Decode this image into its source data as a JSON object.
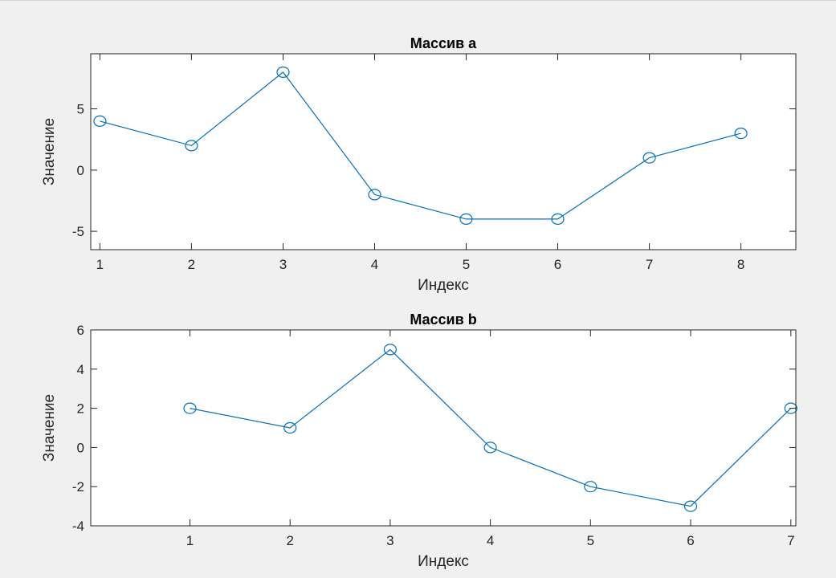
{
  "colors": {
    "background": "#f0f0f0",
    "axes_bg": "#ffffff",
    "line": "#0072bd",
    "axis": "#262626"
  },
  "chart_data": [
    {
      "type": "line",
      "title": "Массив a",
      "xlabel": "Индекс",
      "ylabel": "Значение",
      "marker": "circle",
      "x": [
        1,
        2,
        3,
        4,
        5,
        6,
        7,
        8
      ],
      "y": [
        4,
        2,
        8,
        -2,
        -4,
        -4,
        1,
        3
      ],
      "xlim": [
        0.9,
        8.6
      ],
      "ylim": [
        -6.5,
        9.5
      ],
      "xticks": [
        1,
        2,
        3,
        4,
        5,
        6,
        7,
        8
      ],
      "yticks": [
        -5,
        0,
        5
      ],
      "grid": false,
      "legend": "none"
    },
    {
      "type": "line",
      "title": "Массив b",
      "xlabel": "Индекс",
      "ylabel": "Значение",
      "marker": "circle",
      "x": [
        1,
        2,
        3,
        4,
        5,
        6,
        7
      ],
      "y": [
        2,
        1,
        5,
        0,
        -2,
        -3,
        2
      ],
      "xlim": [
        0.01,
        7.05
      ],
      "ylim": [
        -4,
        6
      ],
      "xticks": [
        1,
        2,
        3,
        4,
        5,
        6,
        7
      ],
      "yticks": [
        -4,
        -2,
        0,
        2,
        4,
        6
      ],
      "grid": false,
      "legend": "none"
    }
  ]
}
